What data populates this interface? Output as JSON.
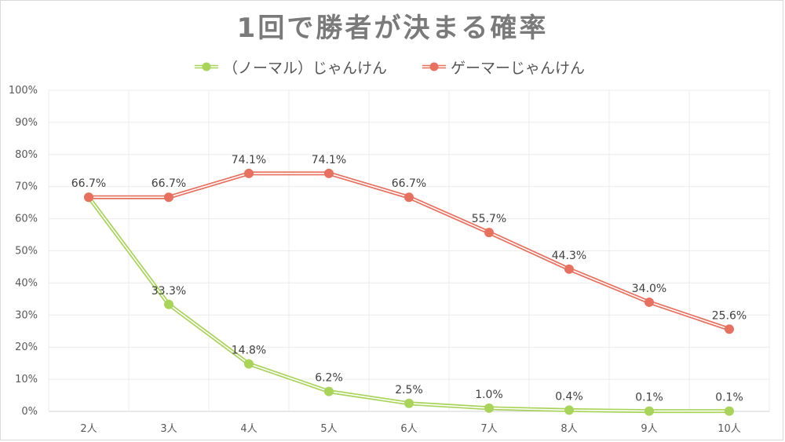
{
  "chart_data": {
    "type": "line",
    "title": "1回で勝者が決まる確率",
    "categories": [
      "2人",
      "3人",
      "4人",
      "5人",
      "6人",
      "7人",
      "8人",
      "9人",
      "10人"
    ],
    "series": [
      {
        "name": "（ノーマル）じゃんけん",
        "color": "#a9d45a",
        "values": [
          66.7,
          33.3,
          14.8,
          6.2,
          2.5,
          1.0,
          0.4,
          0.1,
          0.1
        ],
        "labels": [
          "",
          "33.3%",
          "14.8%",
          "6.2%",
          "2.5%",
          "1.0%",
          "0.4%",
          "0.1%",
          "0.1%"
        ]
      },
      {
        "name": "ゲーマーじゃんけん",
        "color": "#e8705e",
        "values": [
          66.7,
          66.7,
          74.1,
          74.1,
          66.7,
          55.7,
          44.3,
          34.0,
          25.6
        ],
        "labels": [
          "66.7%",
          "66.7%",
          "74.1%",
          "74.1%",
          "66.7%",
          "55.7%",
          "44.3%",
          "34.0%",
          "25.6%"
        ]
      }
    ],
    "y_ticks": [
      "0%",
      "10%",
      "20%",
      "30%",
      "40%",
      "50%",
      "60%",
      "70%",
      "80%",
      "90%",
      "100%"
    ],
    "ylim": [
      0,
      100
    ],
    "grid": true,
    "legend_position": "top"
  }
}
